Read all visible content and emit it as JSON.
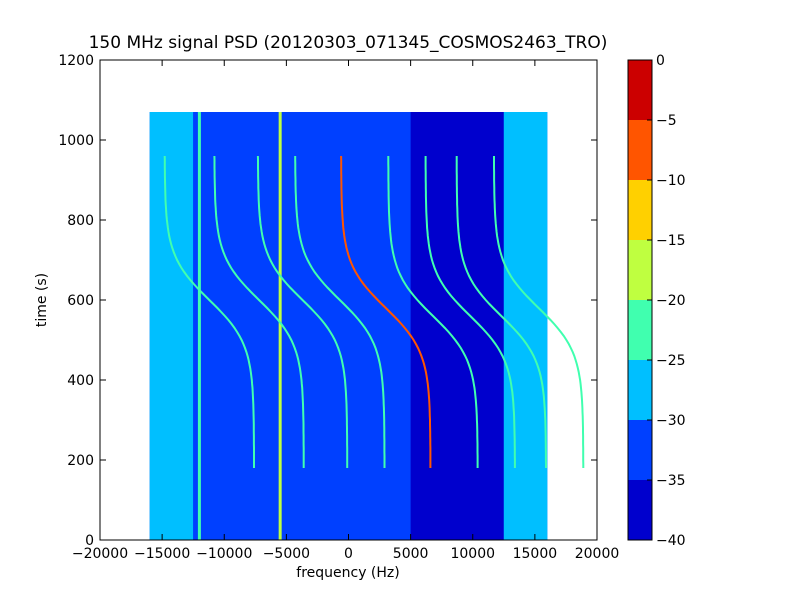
{
  "chart_data": {
    "type": "heatmap",
    "title": "150 MHz signal PSD (20120303_071345_COSMOS2463_TRO)",
    "xlabel": "frequency (Hz)",
    "ylabel": "time (s)",
    "xlim": [
      -20000,
      20000
    ],
    "ylim": [
      0,
      1200
    ],
    "x_ticks": [
      -20000,
      -15000,
      -10000,
      -5000,
      0,
      5000,
      10000,
      15000,
      20000
    ],
    "y_ticks": [
      0,
      200,
      400,
      600,
      800,
      1000,
      1200
    ],
    "data_extent": {
      "x": [
        -16000,
        16000
      ],
      "y": [
        0,
        1070
      ]
    },
    "colorbar": {
      "levels": [
        -40,
        -35,
        -30,
        -25,
        -20,
        -15,
        -10,
        -5,
        0
      ],
      "tick_labels": [
        "−40",
        "−35",
        "−30",
        "−25",
        "−20",
        "−15",
        "−10",
        "−5",
        "0"
      ],
      "colors": [
        "#0000cd",
        "#0040ff",
        "#00bfff",
        "#40ffaf",
        "#bfff40",
        "#ffd000",
        "#ff5500",
        "#cc0000"
      ]
    },
    "noise_floor_level": -30,
    "background_bands": [
      {
        "x": [
          -16000,
          -12500
        ],
        "level": -27.5
      },
      {
        "x": [
          -12500,
          5000
        ],
        "level": -32.5
      },
      {
        "x": [
          5000,
          12500
        ],
        "level": -37.5
      },
      {
        "x": [
          12500,
          16000
        ],
        "level": -27.5
      }
    ],
    "vertical_lines": [
      {
        "x": -5500,
        "level": -17.5
      },
      {
        "x": -12000,
        "level": -22.5
      }
    ],
    "doppler_traces": [
      {
        "center_freq": -13000,
        "t0": 600,
        "level": -22.5
      },
      {
        "center_freq": -9000,
        "t0": 600,
        "level": -22.5
      },
      {
        "center_freq": -5500,
        "t0": 600,
        "level": -22.5
      },
      {
        "center_freq": -2500,
        "t0": 600,
        "level": -22.5
      },
      {
        "center_freq": 1200,
        "t0": 580,
        "level": -7.5
      },
      {
        "center_freq": 5000,
        "t0": 560,
        "level": -22.5
      },
      {
        "center_freq": 8000,
        "t0": 560,
        "level": -22.5
      },
      {
        "center_freq": 10500,
        "t0": 560,
        "level": -22.5
      },
      {
        "center_freq": 13500,
        "t0": 580,
        "level": -22.5
      }
    ]
  }
}
